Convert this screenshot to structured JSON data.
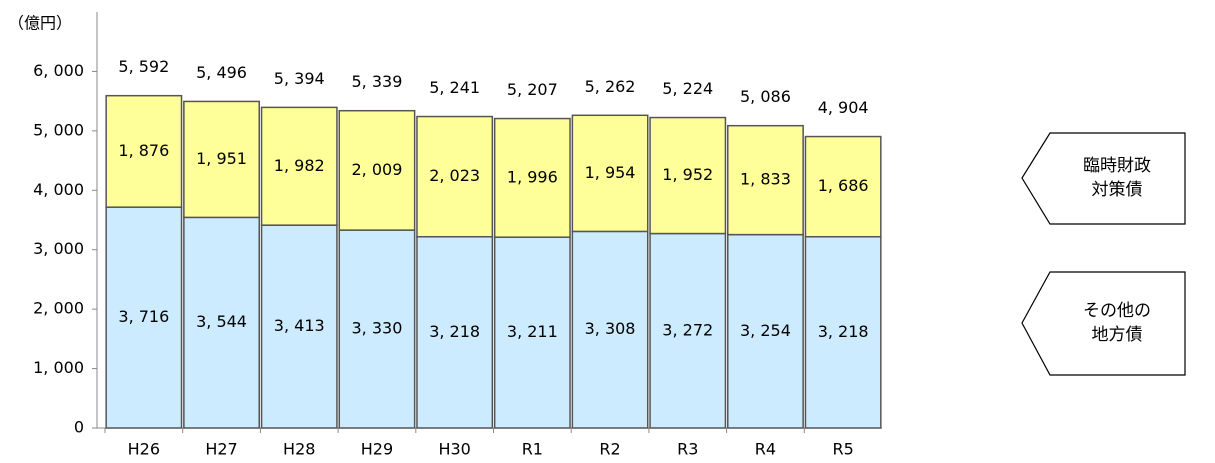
{
  "chart_data": {
    "type": "stacked_bar",
    "unit_label": "（億円）",
    "categories": [
      "H26",
      "H27",
      "H28",
      "H29",
      "H30",
      "R1",
      "R2",
      "R3",
      "R4",
      "R5"
    ],
    "series": [
      {
        "name": "その他の地方債",
        "color": "#ccebff",
        "values": [
          3716,
          3544,
          3413,
          3330,
          3218,
          3211,
          3308,
          3272,
          3254,
          3218
        ],
        "value_labels": [
          "3, 716",
          "3, 544",
          "3, 413",
          "3, 330",
          "3, 218",
          "3, 211",
          "3, 308",
          "3, 272",
          "3, 254",
          "3, 218"
        ]
      },
      {
        "name": "臨時財政対策債",
        "color": "#ffff99",
        "values": [
          1876,
          1951,
          1982,
          2009,
          2023,
          1996,
          1954,
          1952,
          1833,
          1686
        ],
        "value_labels": [
          "1, 876",
          "1, 951",
          "1, 982",
          "2, 009",
          "2, 023",
          "1, 996",
          "1, 954",
          "1, 952",
          "1, 833",
          "1, 686"
        ]
      }
    ],
    "totals": [
      5592,
      5496,
      5394,
      5339,
      5241,
      5207,
      5262,
      5224,
      5086,
      4904
    ],
    "total_labels": [
      "5, 592",
      "5, 496",
      "5, 394",
      "5, 339",
      "5, 241",
      "5, 207",
      "5, 262",
      "5, 224",
      "5, 086",
      "4, 904"
    ],
    "ylim": [
      0,
      7000
    ],
    "yticks": [
      0,
      {
        "value": 1000,
        "label": "1, 000"
      },
      {
        "value": 2000,
        "label": "2, 000"
      },
      {
        "value": 3000,
        "label": "3, 000"
      },
      {
        "value": 4000,
        "label": "4, 000"
      },
      {
        "value": 5000,
        "label": "5, 000"
      },
      {
        "value": 6000,
        "label": "6, 000"
      }
    ]
  }
}
